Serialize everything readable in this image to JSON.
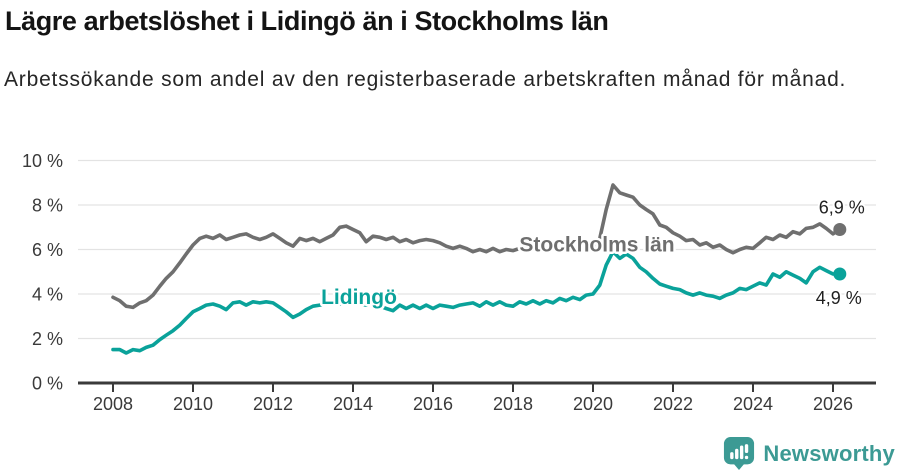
{
  "header": {
    "title": "Lägre arbetslöshet i Lidingö än i Stockholms län",
    "subtitle": "Arbetssökande som andel av den registerbaserade arbetskraften månad för månad."
  },
  "footer": {
    "brand": "Newsworthy",
    "brand_color": "#3c9a94",
    "logo_icon": "bar-chart-pin-icon"
  },
  "chart_data": {
    "type": "line",
    "title": "Lägre arbetslöshet i Lidingö än i Stockholms län",
    "xlabel": "",
    "ylabel": "",
    "grid": "horizontal",
    "ylim": [
      0,
      10
    ],
    "xlim": [
      2007.6,
      2026.6
    ],
    "y_tick_labels": [
      "0 %",
      "2 %",
      "4 %",
      "6 %",
      "8 %",
      "10 %"
    ],
    "y_tick_values": [
      0,
      2,
      4,
      6,
      8,
      10
    ],
    "x_ticks": [
      2008,
      2010,
      2012,
      2014,
      2016,
      2018,
      2020,
      2022,
      2024,
      2026
    ],
    "colors": {
      "stockholm": "#6f6f6f",
      "lidingo": "#0aa29a",
      "grid": "#e3e3e3",
      "axis": "#3a3a3a",
      "tick_text": "#3a3a3a",
      "end_label_text": "#1f1f1f"
    },
    "x": [
      2008,
      2008.17,
      2008.33,
      2008.5,
      2008.67,
      2008.83,
      2009,
      2009.17,
      2009.33,
      2009.5,
      2009.67,
      2009.83,
      2010,
      2010.17,
      2010.33,
      2010.5,
      2010.67,
      2010.83,
      2011,
      2011.17,
      2011.33,
      2011.5,
      2011.67,
      2011.83,
      2012,
      2012.17,
      2012.33,
      2012.5,
      2012.67,
      2012.83,
      2013,
      2013.17,
      2013.33,
      2013.5,
      2013.67,
      2013.83,
      2014,
      2014.17,
      2014.33,
      2014.5,
      2014.67,
      2014.83,
      2015,
      2015.17,
      2015.33,
      2015.5,
      2015.67,
      2015.83,
      2016,
      2016.17,
      2016.33,
      2016.5,
      2016.67,
      2016.83,
      2017,
      2017.17,
      2017.33,
      2017.5,
      2017.67,
      2017.83,
      2018,
      2018.17,
      2018.33,
      2018.5,
      2018.67,
      2018.83,
      2019,
      2019.17,
      2019.33,
      2019.5,
      2019.67,
      2019.83,
      2020,
      2020.17,
      2020.33,
      2020.5,
      2020.67,
      2020.83,
      2021,
      2021.17,
      2021.33,
      2021.5,
      2021.67,
      2021.83,
      2022,
      2022.17,
      2022.33,
      2022.5,
      2022.67,
      2022.83,
      2023,
      2023.17,
      2023.33,
      2023.5,
      2023.67,
      2023.83,
      2024,
      2024.17,
      2024.33,
      2024.5,
      2024.67,
      2024.83,
      2025,
      2025.17,
      2025.33,
      2025.5,
      2025.67,
      2025.83,
      2026,
      2026.17
    ],
    "series": [
      {
        "name": "Stockholms län",
        "color": "#6f6f6f",
        "end_label": "6,9 %",
        "end_value": 6.9,
        "end_label_offset": [
          2,
          -22
        ],
        "label_x": 2020.1,
        "label_y": 6.22,
        "values": [
          3.85,
          3.7,
          3.45,
          3.4,
          3.6,
          3.7,
          3.95,
          4.35,
          4.7,
          5.0,
          5.4,
          5.8,
          6.2,
          6.5,
          6.6,
          6.5,
          6.65,
          6.45,
          6.55,
          6.65,
          6.7,
          6.55,
          6.45,
          6.55,
          6.7,
          6.5,
          6.3,
          6.15,
          6.5,
          6.4,
          6.5,
          6.35,
          6.5,
          6.65,
          7.0,
          7.05,
          6.9,
          6.75,
          6.35,
          6.6,
          6.55,
          6.45,
          6.55,
          6.35,
          6.45,
          6.3,
          6.4,
          6.45,
          6.4,
          6.3,
          6.15,
          6.05,
          6.15,
          6.05,
          5.9,
          6.0,
          5.9,
          6.05,
          5.9,
          6.0,
          5.95,
          6.05,
          6.0,
          6.0,
          6.05,
          6.0,
          6.05,
          6.0,
          6.05,
          6.1,
          6.05,
          6.1,
          6.1,
          6.5,
          7.8,
          8.9,
          8.55,
          8.45,
          8.35,
          8.0,
          7.8,
          7.6,
          7.1,
          7.0,
          6.75,
          6.6,
          6.4,
          6.45,
          6.2,
          6.3,
          6.1,
          6.2,
          6.0,
          5.85,
          6.0,
          6.1,
          6.05,
          6.3,
          6.55,
          6.45,
          6.65,
          6.55,
          6.8,
          6.7,
          6.95,
          7.0,
          7.15,
          6.95,
          6.7,
          6.9
        ]
      },
      {
        "name": "Lidingö",
        "color": "#0aa29a",
        "end_label": "4,9 %",
        "end_value": 4.9,
        "end_label_offset": [
          -1,
          24
        ],
        "label_x": 2014.15,
        "label_y": 3.87,
        "values": [
          1.5,
          1.5,
          1.35,
          1.5,
          1.45,
          1.6,
          1.7,
          1.95,
          2.15,
          2.35,
          2.6,
          2.9,
          3.2,
          3.35,
          3.5,
          3.55,
          3.45,
          3.3,
          3.6,
          3.65,
          3.5,
          3.65,
          3.6,
          3.65,
          3.6,
          3.4,
          3.2,
          2.95,
          3.1,
          3.3,
          3.45,
          3.5,
          3.55,
          3.6,
          3.55,
          3.65,
          3.7,
          3.55,
          3.5,
          3.6,
          3.45,
          3.35,
          3.25,
          3.5,
          3.35,
          3.5,
          3.35,
          3.5,
          3.35,
          3.5,
          3.45,
          3.4,
          3.5,
          3.55,
          3.6,
          3.45,
          3.65,
          3.5,
          3.65,
          3.5,
          3.45,
          3.65,
          3.55,
          3.7,
          3.55,
          3.7,
          3.6,
          3.8,
          3.7,
          3.85,
          3.75,
          3.95,
          4.0,
          4.4,
          5.3,
          5.9,
          5.6,
          5.8,
          5.6,
          5.2,
          5.0,
          4.7,
          4.45,
          4.35,
          4.25,
          4.2,
          4.05,
          3.95,
          4.05,
          3.95,
          3.9,
          3.8,
          3.95,
          4.05,
          4.25,
          4.2,
          4.35,
          4.5,
          4.4,
          4.9,
          4.75,
          5.0,
          4.85,
          4.7,
          4.5,
          5.0,
          5.2,
          5.05,
          4.9,
          4.9
        ]
      }
    ]
  }
}
